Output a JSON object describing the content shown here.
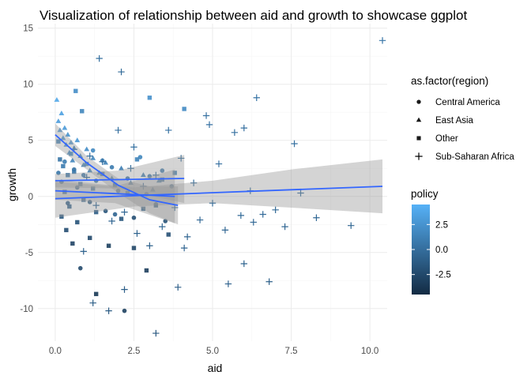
{
  "chart_data": {
    "type": "scatter",
    "title": "Visualization of relationship between aid and growth to showcase ggplot",
    "xlabel": "aid",
    "ylabel": "growth",
    "xlim": [
      -0.55,
      10.55
    ],
    "ylim": [
      -12.9,
      15.4
    ],
    "x_ticks": [
      0.0,
      2.5,
      5.0,
      7.5,
      10.0
    ],
    "x_tick_labels": [
      "0.0",
      "2.5",
      "5.0",
      "7.5",
      "10.0"
    ],
    "y_ticks": [
      -10,
      -5,
      0,
      5,
      10,
      15
    ],
    "y_tick_labels": [
      "-10",
      "-5",
      "0",
      "5",
      "10",
      "15"
    ],
    "grid": true,
    "legend_shape": {
      "title": "as.factor(region)",
      "position": "right",
      "entries": [
        {
          "name": "Central America",
          "shape": "circle"
        },
        {
          "name": "East Asia",
          "shape": "triangle"
        },
        {
          "name": "Other",
          "shape": "square"
        },
        {
          "name": "Sub-Saharan Africa",
          "shape": "plus"
        }
      ]
    },
    "legend_color": {
      "title": "policy",
      "position": "right",
      "min": -4.5,
      "max": 4.5,
      "low_color": "#132b43",
      "high_color": "#56b1f7",
      "ticks": [
        2.5,
        0.0,
        -2.5
      ],
      "tick_labels": [
        "2.5",
        "0.0",
        "-2.5"
      ]
    },
    "smooth_color": "#3366ff",
    "band_color": "#999999",
    "series": [
      {
        "name": "Central America",
        "shape": "circle",
        "points": [
          [
            0.1,
            2.1,
            0.5
          ],
          [
            0.2,
            1.3,
            -0.4
          ],
          [
            0.3,
            3.1,
            1.1
          ],
          [
            0.4,
            -0.6,
            -1.2
          ],
          [
            0.6,
            2.4,
            0.3
          ],
          [
            0.7,
            0.8,
            -0.8
          ],
          [
            0.9,
            1.9,
            0.6
          ],
          [
            1.1,
            -0.5,
            -1.4
          ],
          [
            1.3,
            1.4,
            0.2
          ],
          [
            1.5,
            3.2,
            1.3
          ],
          [
            1.6,
            -1.3,
            -1.7
          ],
          [
            1.8,
            2.6,
            0.9
          ],
          [
            2.0,
            0.5,
            -0.3
          ],
          [
            2.2,
            -10.2,
            -3.0
          ],
          [
            2.3,
            1.6,
            0.1
          ],
          [
            2.5,
            -1.9,
            -2.1
          ],
          [
            2.7,
            3.5,
            1.6
          ],
          [
            2.9,
            0.2,
            -0.9
          ],
          [
            3.0,
            1.8,
            0.4
          ],
          [
            3.2,
            -0.7,
            -1.1
          ],
          [
            3.4,
            2.3,
            0.7
          ],
          [
            3.5,
            -2.2,
            -1.9
          ],
          [
            3.7,
            0.9,
            0.2
          ],
          [
            0.8,
            -6.4,
            -2.4
          ],
          [
            1.2,
            4.1,
            1.8
          ],
          [
            1.9,
            -1.6,
            -0.6
          ]
        ]
      },
      {
        "name": "East Asia",
        "shape": "triangle",
        "points": [
          [
            0.05,
            8.6,
            3.8
          ],
          [
            0.1,
            6.7,
            3.1
          ],
          [
            0.15,
            5.9,
            2.7
          ],
          [
            0.2,
            7.4,
            3.4
          ],
          [
            0.25,
            5.2,
            2.5
          ],
          [
            0.3,
            6.1,
            2.9
          ],
          [
            0.35,
            4.6,
            2.2
          ],
          [
            0.4,
            5.5,
            2.4
          ],
          [
            0.45,
            3.9,
            1.9
          ],
          [
            0.5,
            4.8,
            2.6
          ],
          [
            0.55,
            3.2,
            1.5
          ],
          [
            0.6,
            4.3,
            2.0
          ],
          [
            0.7,
            5.0,
            2.8
          ],
          [
            0.8,
            3.6,
            1.7
          ],
          [
            0.9,
            2.8,
            1.2
          ],
          [
            1.0,
            4.2,
            2.1
          ],
          [
            1.1,
            2.3,
            1.0
          ],
          [
            1.2,
            3.4,
            1.6
          ],
          [
            1.4,
            2.1,
            0.8
          ],
          [
            1.6,
            3.0,
            1.4
          ],
          [
            1.8,
            1.6,
            0.6
          ],
          [
            2.1,
            2.5,
            1.1
          ],
          [
            2.4,
            1.2,
            0.5
          ],
          [
            2.8,
            1.9,
            0.9
          ],
          [
            3.1,
            0.6,
            0.2
          ],
          [
            3.3,
            1.4,
            0.7
          ]
        ]
      },
      {
        "name": "Other",
        "shape": "square",
        "points": [
          [
            0.1,
            4.9,
            1.2
          ],
          [
            0.15,
            3.3,
            0.4
          ],
          [
            0.2,
            -1.8,
            -1.5
          ],
          [
            0.25,
            2.7,
            0.9
          ],
          [
            0.3,
            0.4,
            -0.5
          ],
          [
            0.35,
            -3.0,
            -2.2
          ],
          [
            0.4,
            1.9,
            0.3
          ],
          [
            0.45,
            -0.9,
            -1.0
          ],
          [
            0.5,
            3.8,
            1.7
          ],
          [
            0.55,
            -4.2,
            -2.8
          ],
          [
            0.6,
            2.2,
            0.6
          ],
          [
            0.7,
            -2.3,
            -1.8
          ],
          [
            0.8,
            1.1,
            -0.2
          ],
          [
            0.9,
            -0.3,
            -0.7
          ],
          [
            1.0,
            2.9,
            1.3
          ],
          [
            1.1,
            -3.7,
            -2.5
          ],
          [
            1.2,
            0.7,
            0.1
          ],
          [
            1.3,
            -1.4,
            -1.2
          ],
          [
            1.5,
            2.0,
            0.5
          ],
          [
            1.7,
            -4.4,
            -3.1
          ],
          [
            1.9,
            1.0,
            0.0
          ],
          [
            2.1,
            -2.0,
            -1.6
          ],
          [
            2.3,
            0.3,
            -0.4
          ],
          [
            2.6,
            3.3,
            1.4
          ],
          [
            2.8,
            -1.1,
            -0.9
          ],
          [
            3.0,
            8.8,
            2.3
          ],
          [
            3.2,
            -0.8,
            -1.3
          ],
          [
            3.4,
            1.5,
            0.4
          ],
          [
            3.6,
            -3.4,
            -2.0
          ],
          [
            3.8,
            2.1,
            0.8
          ],
          [
            4.1,
            7.8,
            1.9
          ],
          [
            0.65,
            9.4,
            2.1
          ],
          [
            0.85,
            7.6,
            1.6
          ],
          [
            1.3,
            -8.7,
            -3.5
          ],
          [
            2.5,
            -4.6,
            -2.7
          ],
          [
            2.9,
            -6.6,
            -3.2
          ]
        ]
      },
      {
        "name": "Sub-Saharan Africa",
        "shape": "plus",
        "points": [
          [
            1.4,
            12.3,
            0.1
          ],
          [
            2.1,
            11.1,
            -0.2
          ],
          [
            0.6,
            4.2,
            0.3
          ],
          [
            1.0,
            1.7,
            -0.5
          ],
          [
            1.3,
            -0.8,
            -0.3
          ],
          [
            1.5,
            3.1,
            0.2
          ],
          [
            1.8,
            -2.2,
            -0.6
          ],
          [
            2.0,
            5.9,
            0.1
          ],
          [
            2.2,
            -1.4,
            -0.4
          ],
          [
            2.4,
            2.5,
            0.0
          ],
          [
            2.6,
            -3.3,
            -0.7
          ],
          [
            2.8,
            0.9,
            -0.1
          ],
          [
            3.0,
            -4.4,
            -0.9
          ],
          [
            3.2,
            1.9,
            0.2
          ],
          [
            3.4,
            -2.7,
            -0.5
          ],
          [
            3.6,
            5.9,
            0.3
          ],
          [
            3.8,
            -1.0,
            -0.2
          ],
          [
            4.0,
            3.4,
            0.1
          ],
          [
            4.2,
            -3.6,
            -0.6
          ],
          [
            4.4,
            1.2,
            -0.1
          ],
          [
            4.6,
            -2.1,
            -0.4
          ],
          [
            4.8,
            7.2,
            0.2
          ],
          [
            4.9,
            6.4,
            0.3
          ],
          [
            5.0,
            -0.6,
            -0.2
          ],
          [
            5.2,
            2.9,
            0.1
          ],
          [
            5.4,
            -3.0,
            -0.5
          ],
          [
            5.5,
            -7.8,
            -0.8
          ],
          [
            5.7,
            5.7,
            0.2
          ],
          [
            5.9,
            -1.7,
            -0.3
          ],
          [
            6.0,
            6.1,
            0.1
          ],
          [
            6.0,
            -6.0,
            -0.7
          ],
          [
            6.2,
            0.5,
            0.0
          ],
          [
            6.3,
            -2.3,
            -0.4
          ],
          [
            6.4,
            8.8,
            0.4
          ],
          [
            6.6,
            -1.6,
            -0.2
          ],
          [
            6.8,
            -7.6,
            -0.9
          ],
          [
            7.0,
            -1.2,
            -0.3
          ],
          [
            7.3,
            -2.7,
            -0.5
          ],
          [
            7.6,
            4.7,
            0.2
          ],
          [
            7.8,
            0.3,
            -0.1
          ],
          [
            8.3,
            -1.9,
            -0.4
          ],
          [
            9.4,
            -2.6,
            -0.5
          ],
          [
            10.4,
            13.9,
            0.5
          ],
          [
            1.2,
            -9.5,
            -1.1
          ],
          [
            1.7,
            -10.2,
            -1.2
          ],
          [
            3.2,
            -12.2,
            -1.4
          ],
          [
            3.9,
            -8.1,
            -1.0
          ],
          [
            2.2,
            -8.3,
            -1.0
          ],
          [
            4.1,
            -4.6,
            -0.6
          ],
          [
            2.5,
            4.4,
            0.2
          ],
          [
            0.9,
            -4.9,
            -0.7
          ],
          [
            1.1,
            3.6,
            0.1
          ]
        ]
      }
    ],
    "smooth_fits": [
      {
        "group": "Central America",
        "x_range": [
          0.0,
          3.8
        ],
        "line": [
          [
            0.0,
            0.5
          ],
          [
            3.8,
            0.0
          ]
        ],
        "band_upper": [
          [
            0.0,
            1.3
          ],
          [
            1.9,
            0.9
          ],
          [
            3.8,
            2.4
          ]
        ],
        "band_lower": [
          [
            0.0,
            -0.3
          ],
          [
            1.9,
            -0.6
          ],
          [
            3.8,
            -2.4
          ]
        ]
      },
      {
        "group": "East Asia",
        "x_range": [
          0.0,
          3.9
        ],
        "line": [
          [
            0.0,
            5.5
          ],
          [
            1.0,
            3.0
          ],
          [
            2.0,
            1.0
          ],
          [
            3.0,
            -0.3
          ],
          [
            3.9,
            -0.8
          ]
        ],
        "band_upper": [
          [
            0.0,
            6.5
          ],
          [
            1.0,
            3.6
          ],
          [
            2.0,
            1.6
          ],
          [
            3.0,
            0.9
          ],
          [
            3.9,
            0.9
          ]
        ],
        "band_lower": [
          [
            0.0,
            4.5
          ],
          [
            1.0,
            2.4
          ],
          [
            2.0,
            0.3
          ],
          [
            3.0,
            -1.5
          ],
          [
            3.9,
            -2.5
          ]
        ]
      },
      {
        "group": "Other",
        "x_range": [
          0.0,
          4.1
        ],
        "line": [
          [
            0.0,
            1.4
          ],
          [
            4.1,
            1.6
          ]
        ],
        "band_upper": [
          [
            0.0,
            2.0
          ],
          [
            2.0,
            2.3
          ],
          [
            4.1,
            3.7
          ]
        ],
        "band_lower": [
          [
            0.0,
            0.8
          ],
          [
            2.0,
            0.7
          ],
          [
            4.1,
            -0.6
          ]
        ]
      },
      {
        "group": "Sub-Saharan Africa",
        "x_range": [
          0.0,
          10.4
        ],
        "line": [
          [
            0.0,
            -0.2
          ],
          [
            10.4,
            0.9
          ]
        ],
        "band_upper": [
          [
            0.0,
            1.5
          ],
          [
            2.5,
            0.8
          ],
          [
            5.0,
            1.4
          ],
          [
            7.5,
            2.4
          ],
          [
            10.4,
            3.3
          ]
        ],
        "band_lower": [
          [
            0.0,
            -1.9
          ],
          [
            2.5,
            -0.9
          ],
          [
            5.0,
            -0.6
          ],
          [
            7.5,
            -1.0
          ],
          [
            10.4,
            -1.5
          ]
        ]
      }
    ]
  }
}
